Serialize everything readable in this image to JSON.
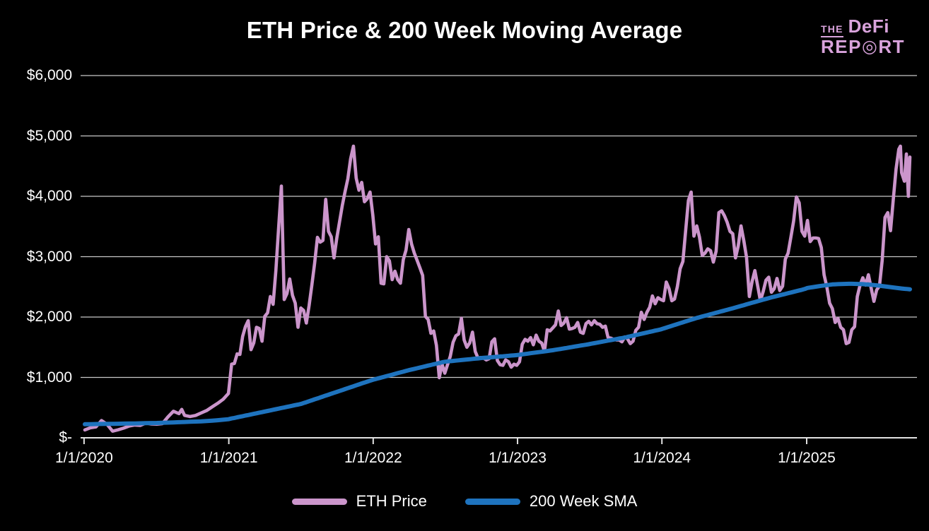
{
  "header": {
    "logo": {
      "the": "THE",
      "defi": "DeFi",
      "rep": "REP",
      "o": "◎",
      "rt": "RT",
      "color": "#d9a3dc"
    }
  },
  "chart_data": {
    "type": "line",
    "title": "ETH Price & 200 Week Moving Average",
    "xlabel": "",
    "ylabel": "",
    "ylim": [
      0,
      6000
    ],
    "x_range": [
      "2020-01-03",
      "2025-09-19"
    ],
    "grid": "horizontal",
    "legend_position": "bottom",
    "y_ticks": [
      {
        "label": "$6,000",
        "value": 6000
      },
      {
        "label": "$5,000",
        "value": 5000
      },
      {
        "label": "$4,000",
        "value": 4000
      },
      {
        "label": "$3,000",
        "value": 3000
      },
      {
        "label": "$2,000",
        "value": 2000
      },
      {
        "label": "$1,000",
        "value": 1000
      },
      {
        "label": "$-",
        "value": 0
      }
    ],
    "x_ticks": [
      {
        "label": "1/1/2020",
        "date": "2020-01-01"
      },
      {
        "label": "1/1/2021",
        "date": "2021-01-01"
      },
      {
        "label": "1/1/2022",
        "date": "2022-01-01"
      },
      {
        "label": "1/1/2023",
        "date": "2023-01-01"
      },
      {
        "label": "1/1/2024",
        "date": "2024-01-01"
      },
      {
        "label": "1/1/2025",
        "date": "2025-01-01"
      }
    ],
    "series": [
      {
        "name": "ETH Price",
        "color": "#cb95cb",
        "column": 1
      },
      {
        "name": "200 Week SMA",
        "color": "#1e73be",
        "column": 2
      }
    ],
    "colors": {
      "grid": "#c8c8c8",
      "axis": "#e2e2e2",
      "text": "#ffffff",
      "background": "#000000"
    },
    "rows_note": "each row = [week_date, eth_price_usd, sma_200_week_usd]",
    "rows": [
      [
        "2020-01-03",
        130,
        225
      ],
      [
        "2020-01-17",
        166,
        226
      ],
      [
        "2020-01-31",
        180,
        228
      ],
      [
        "2020-02-14",
        285,
        229
      ],
      [
        "2020-02-28",
        225,
        231
      ],
      [
        "2020-03-13",
        110,
        232
      ],
      [
        "2020-03-27",
        132,
        233
      ],
      [
        "2020-04-10",
        160,
        235
      ],
      [
        "2020-04-24",
        195,
        236
      ],
      [
        "2020-05-08",
        212,
        238
      ],
      [
        "2020-05-22",
        205,
        240
      ],
      [
        "2020-06-05",
        245,
        242
      ],
      [
        "2020-06-19",
        228,
        244
      ],
      [
        "2020-07-03",
        226,
        246
      ],
      [
        "2020-07-17",
        235,
        249
      ],
      [
        "2020-07-31",
        345,
        252
      ],
      [
        "2020-08-14",
        440,
        255
      ],
      [
        "2020-08-28",
        400,
        258
      ],
      [
        "2020-09-04",
        470,
        260
      ],
      [
        "2020-09-11",
        372,
        262
      ],
      [
        "2020-09-25",
        352,
        265
      ],
      [
        "2020-10-09",
        370,
        269
      ],
      [
        "2020-10-23",
        412,
        273
      ],
      [
        "2020-11-06",
        452,
        278
      ],
      [
        "2020-11-20",
        512,
        284
      ],
      [
        "2020-12-04",
        572,
        291
      ],
      [
        "2020-12-18",
        640,
        299
      ],
      [
        "2020-12-31",
        735,
        308
      ],
      [
        "2021-01-08",
        1220,
        320
      ],
      [
        "2021-01-15",
        1230,
        329
      ],
      [
        "2021-01-22",
        1390,
        339
      ],
      [
        "2021-01-29",
        1380,
        348
      ],
      [
        "2021-02-05",
        1680,
        358
      ],
      [
        "2021-02-12",
        1840,
        368
      ],
      [
        "2021-02-19",
        1940,
        377
      ],
      [
        "2021-02-26",
        1460,
        387
      ],
      [
        "2021-03-05",
        1570,
        397
      ],
      [
        "2021-03-12",
        1830,
        406
      ],
      [
        "2021-03-19",
        1810,
        416
      ],
      [
        "2021-03-26",
        1600,
        425
      ],
      [
        "2021-04-02",
        2010,
        435
      ],
      [
        "2021-04-09",
        2070,
        445
      ],
      [
        "2021-04-16",
        2340,
        454
      ],
      [
        "2021-04-23",
        2210,
        464
      ],
      [
        "2021-04-30",
        2770,
        474
      ],
      [
        "2021-05-07",
        3480,
        483
      ],
      [
        "2021-05-14",
        4170,
        493
      ],
      [
        "2021-05-21",
        2290,
        502
      ],
      [
        "2021-05-28",
        2390,
        512
      ],
      [
        "2021-06-04",
        2630,
        522
      ],
      [
        "2021-06-11",
        2360,
        531
      ],
      [
        "2021-06-18",
        2230,
        541
      ],
      [
        "2021-06-25",
        1830,
        550
      ],
      [
        "2021-07-02",
        2150,
        560
      ],
      [
        "2021-07-09",
        2110,
        575
      ],
      [
        "2021-07-16",
        1900,
        590
      ],
      [
        "2021-07-23",
        2190,
        606
      ],
      [
        "2021-07-30",
        2530,
        621
      ],
      [
        "2021-08-06",
        2890,
        637
      ],
      [
        "2021-08-13",
        3320,
        652
      ],
      [
        "2021-08-20",
        3240,
        668
      ],
      [
        "2021-08-27",
        3270,
        683
      ],
      [
        "2021-09-03",
        3950,
        699
      ],
      [
        "2021-09-10",
        3420,
        714
      ],
      [
        "2021-09-17",
        3330,
        730
      ],
      [
        "2021-09-24",
        2980,
        745
      ],
      [
        "2021-10-01",
        3310,
        760
      ],
      [
        "2021-10-08",
        3580,
        776
      ],
      [
        "2021-10-15",
        3850,
        791
      ],
      [
        "2021-10-22",
        4080,
        807
      ],
      [
        "2021-10-29",
        4290,
        822
      ],
      [
        "2021-11-05",
        4620,
        838
      ],
      [
        "2021-11-12",
        4830,
        853
      ],
      [
        "2021-11-19",
        4300,
        869
      ],
      [
        "2021-11-26",
        4100,
        884
      ],
      [
        "2021-12-03",
        4230,
        900
      ],
      [
        "2021-12-10",
        3910,
        915
      ],
      [
        "2021-12-17",
        3960,
        930
      ],
      [
        "2021-12-24",
        4070,
        945
      ],
      [
        "2021-12-31",
        3690,
        960
      ],
      [
        "2022-01-07",
        3210,
        972
      ],
      [
        "2022-01-14",
        3330,
        985
      ],
      [
        "2022-01-21",
        2560,
        997
      ],
      [
        "2022-01-28",
        2550,
        1009
      ],
      [
        "2022-02-04",
        3000,
        1022
      ],
      [
        "2022-02-11",
        2930,
        1034
      ],
      [
        "2022-02-18",
        2620,
        1046
      ],
      [
        "2022-02-25",
        2760,
        1058
      ],
      [
        "2022-03-04",
        2620,
        1071
      ],
      [
        "2022-03-11",
        2560,
        1083
      ],
      [
        "2022-03-18",
        2950,
        1095
      ],
      [
        "2022-03-25",
        3110,
        1108
      ],
      [
        "2022-04-01",
        3450,
        1120
      ],
      [
        "2022-04-08",
        3210,
        1131
      ],
      [
        "2022-04-15",
        3060,
        1142
      ],
      [
        "2022-04-22",
        2940,
        1152
      ],
      [
        "2022-04-29",
        2820,
        1163
      ],
      [
        "2022-05-06",
        2690,
        1174
      ],
      [
        "2022-05-13",
        2010,
        1185
      ],
      [
        "2022-05-20",
        1960,
        1196
      ],
      [
        "2022-05-27",
        1730,
        1206
      ],
      [
        "2022-06-03",
        1770,
        1217
      ],
      [
        "2022-06-10",
        1530,
        1228
      ],
      [
        "2022-06-17",
        995,
        1239
      ],
      [
        "2022-06-24",
        1220,
        1250
      ],
      [
        "2022-07-01",
        1070,
        1260
      ],
      [
        "2022-07-08",
        1210,
        1265
      ],
      [
        "2022-07-15",
        1350,
        1269
      ],
      [
        "2022-07-22",
        1580,
        1274
      ],
      [
        "2022-07-29",
        1690,
        1278
      ],
      [
        "2022-08-05",
        1720,
        1283
      ],
      [
        "2022-08-12",
        1980,
        1288
      ],
      [
        "2022-08-19",
        1620,
        1292
      ],
      [
        "2022-08-26",
        1500,
        1297
      ],
      [
        "2022-09-02",
        1570,
        1301
      ],
      [
        "2022-09-09",
        1750,
        1306
      ],
      [
        "2022-09-16",
        1430,
        1311
      ],
      [
        "2022-09-23",
        1320,
        1315
      ],
      [
        "2022-09-30",
        1330,
        1320
      ],
      [
        "2022-10-07",
        1320,
        1324
      ],
      [
        "2022-10-14",
        1290,
        1328
      ],
      [
        "2022-10-21",
        1310,
        1331
      ],
      [
        "2022-10-28",
        1590,
        1335
      ],
      [
        "2022-11-04",
        1640,
        1339
      ],
      [
        "2022-11-11",
        1280,
        1343
      ],
      [
        "2022-11-18",
        1210,
        1347
      ],
      [
        "2022-11-25",
        1200,
        1350
      ],
      [
        "2022-12-02",
        1290,
        1354
      ],
      [
        "2022-12-09",
        1260,
        1358
      ],
      [
        "2022-12-16",
        1170,
        1362
      ],
      [
        "2022-12-23",
        1220,
        1366
      ],
      [
        "2022-12-30",
        1200,
        1370
      ],
      [
        "2023-01-06",
        1260,
        1376
      ],
      [
        "2023-01-13",
        1550,
        1382
      ],
      [
        "2023-01-20",
        1630,
        1388
      ],
      [
        "2023-01-27",
        1600,
        1394
      ],
      [
        "2023-02-03",
        1660,
        1401
      ],
      [
        "2023-02-10",
        1540,
        1407
      ],
      [
        "2023-02-17",
        1700,
        1413
      ],
      [
        "2023-02-24",
        1600,
        1419
      ],
      [
        "2023-03-03",
        1570,
        1425
      ],
      [
        "2023-03-10",
        1430,
        1432
      ],
      [
        "2023-03-17",
        1790,
        1438
      ],
      [
        "2023-03-24",
        1770,
        1444
      ],
      [
        "2023-03-31",
        1820,
        1450
      ],
      [
        "2023-04-07",
        1870,
        1458
      ],
      [
        "2023-04-14",
        2100,
        1465
      ],
      [
        "2023-04-21",
        1860,
        1473
      ],
      [
        "2023-04-28",
        1900,
        1481
      ],
      [
        "2023-05-05",
        1990,
        1488
      ],
      [
        "2023-05-12",
        1800,
        1496
      ],
      [
        "2023-05-19",
        1810,
        1504
      ],
      [
        "2023-05-26",
        1830,
        1512
      ],
      [
        "2023-06-02",
        1910,
        1519
      ],
      [
        "2023-06-09",
        1750,
        1527
      ],
      [
        "2023-06-16",
        1730,
        1535
      ],
      [
        "2023-06-23",
        1890,
        1542
      ],
      [
        "2023-06-30",
        1930,
        1550
      ],
      [
        "2023-07-07",
        1870,
        1559
      ],
      [
        "2023-07-14",
        1940,
        1567
      ],
      [
        "2023-07-21",
        1890,
        1576
      ],
      [
        "2023-07-28",
        1880,
        1584
      ],
      [
        "2023-08-04",
        1830,
        1593
      ],
      [
        "2023-08-11",
        1850,
        1601
      ],
      [
        "2023-08-18",
        1660,
        1610
      ],
      [
        "2023-08-25",
        1650,
        1618
      ],
      [
        "2023-09-01",
        1630,
        1627
      ],
      [
        "2023-09-08",
        1620,
        1635
      ],
      [
        "2023-09-15",
        1620,
        1644
      ],
      [
        "2023-09-22",
        1590,
        1652
      ],
      [
        "2023-09-29",
        1670,
        1660
      ],
      [
        "2023-10-06",
        1640,
        1671
      ],
      [
        "2023-10-13",
        1560,
        1681
      ],
      [
        "2023-10-20",
        1600,
        1692
      ],
      [
        "2023-10-27",
        1780,
        1702
      ],
      [
        "2023-11-03",
        1830,
        1712
      ],
      [
        "2023-11-10",
        2080,
        1723
      ],
      [
        "2023-11-17",
        1960,
        1733
      ],
      [
        "2023-11-24",
        2080,
        1744
      ],
      [
        "2023-12-01",
        2160,
        1754
      ],
      [
        "2023-12-08",
        2350,
        1764
      ],
      [
        "2023-12-15",
        2220,
        1775
      ],
      [
        "2023-12-22",
        2320,
        1785
      ],
      [
        "2023-12-29",
        2290,
        1795
      ],
      [
        "2024-01-05",
        2270,
        1810
      ],
      [
        "2024-01-12",
        2580,
        1825
      ],
      [
        "2024-01-19",
        2470,
        1840
      ],
      [
        "2024-01-26",
        2270,
        1854
      ],
      [
        "2024-02-02",
        2300,
        1869
      ],
      [
        "2024-02-09",
        2500,
        1883
      ],
      [
        "2024-02-16",
        2800,
        1898
      ],
      [
        "2024-02-23",
        2920,
        1912
      ],
      [
        "2024-03-01",
        3430,
        1927
      ],
      [
        "2024-03-08",
        3930,
        1941
      ],
      [
        "2024-03-15",
        4070,
        1956
      ],
      [
        "2024-03-22",
        3340,
        1970
      ],
      [
        "2024-03-29",
        3510,
        1985
      ],
      [
        "2024-04-05",
        3320,
        1997
      ],
      [
        "2024-04-12",
        3020,
        2010
      ],
      [
        "2024-04-19",
        3060,
        2022
      ],
      [
        "2024-04-26",
        3130,
        2034
      ],
      [
        "2024-05-03",
        3100,
        2047
      ],
      [
        "2024-05-10",
        2910,
        2059
      ],
      [
        "2024-05-17",
        3090,
        2071
      ],
      [
        "2024-05-24",
        3730,
        2083
      ],
      [
        "2024-05-31",
        3760,
        2096
      ],
      [
        "2024-06-07",
        3680,
        2108
      ],
      [
        "2024-06-14",
        3570,
        2120
      ],
      [
        "2024-06-21",
        3420,
        2133
      ],
      [
        "2024-06-28",
        3380,
        2145
      ],
      [
        "2024-07-05",
        2980,
        2158
      ],
      [
        "2024-07-12",
        3180,
        2171
      ],
      [
        "2024-07-19",
        3510,
        2184
      ],
      [
        "2024-07-26",
        3270,
        2197
      ],
      [
        "2024-08-02",
        2990,
        2210
      ],
      [
        "2024-08-09",
        2340,
        2223
      ],
      [
        "2024-08-16",
        2590,
        2236
      ],
      [
        "2024-08-23",
        2770,
        2249
      ],
      [
        "2024-08-30",
        2520,
        2262
      ],
      [
        "2024-09-06",
        2270,
        2275
      ],
      [
        "2024-09-13",
        2420,
        2288
      ],
      [
        "2024-09-20",
        2610,
        2301
      ],
      [
        "2024-09-27",
        2660,
        2314
      ],
      [
        "2024-10-04",
        2410,
        2326
      ],
      [
        "2024-10-11",
        2470,
        2337
      ],
      [
        "2024-10-18",
        2640,
        2349
      ],
      [
        "2024-10-25",
        2440,
        2360
      ],
      [
        "2024-11-01",
        2510,
        2372
      ],
      [
        "2024-11-08",
        2960,
        2383
      ],
      [
        "2024-11-15",
        3060,
        2395
      ],
      [
        "2024-11-22",
        3320,
        2406
      ],
      [
        "2024-11-29",
        3590,
        2418
      ],
      [
        "2024-12-06",
        3990,
        2429
      ],
      [
        "2024-12-13",
        3890,
        2441
      ],
      [
        "2024-12-20",
        3420,
        2452
      ],
      [
        "2024-12-27",
        3340,
        2464
      ],
      [
        "2025-01-03",
        3600,
        2482
      ],
      [
        "2025-01-10",
        3250,
        2489
      ],
      [
        "2025-01-17",
        3310,
        2496
      ],
      [
        "2025-01-24",
        3310,
        2503
      ],
      [
        "2025-01-31",
        3300,
        2510
      ],
      [
        "2025-02-07",
        3150,
        2517
      ],
      [
        "2025-02-14",
        2700,
        2523
      ],
      [
        "2025-02-21",
        2500,
        2529
      ],
      [
        "2025-02-28",
        2230,
        2535
      ],
      [
        "2025-03-07",
        2140,
        2540
      ],
      [
        "2025-03-14",
        1910,
        2543
      ],
      [
        "2025-03-21",
        1980,
        2545
      ],
      [
        "2025-03-28",
        1830,
        2547
      ],
      [
        "2025-04-04",
        1790,
        2549
      ],
      [
        "2025-04-11",
        1560,
        2550
      ],
      [
        "2025-04-18",
        1580,
        2551
      ],
      [
        "2025-04-25",
        1790,
        2551
      ],
      [
        "2025-05-02",
        1840,
        2550
      ],
      [
        "2025-05-09",
        2340,
        2549
      ],
      [
        "2025-05-16",
        2530,
        2547
      ],
      [
        "2025-05-23",
        2650,
        2545
      ],
      [
        "2025-05-30",
        2530,
        2542
      ],
      [
        "2025-06-06",
        2700,
        2538
      ],
      [
        "2025-06-13",
        2480,
        2534
      ],
      [
        "2025-06-20",
        2260,
        2530
      ],
      [
        "2025-06-27",
        2450,
        2525
      ],
      [
        "2025-07-04",
        2510,
        2520
      ],
      [
        "2025-07-11",
        2940,
        2514
      ],
      [
        "2025-07-18",
        3650,
        2508
      ],
      [
        "2025-07-25",
        3730,
        2502
      ],
      [
        "2025-08-01",
        3430,
        2496
      ],
      [
        "2025-08-08",
        3950,
        2490
      ],
      [
        "2025-08-15",
        4450,
        2484
      ],
      [
        "2025-08-22",
        4780,
        2478
      ],
      [
        "2025-08-26",
        4830,
        2475
      ],
      [
        "2025-08-29",
        4390,
        2472
      ],
      [
        "2025-09-05",
        4250,
        2468
      ],
      [
        "2025-09-10",
        4700,
        2465
      ],
      [
        "2025-09-15",
        4000,
        2462
      ],
      [
        "2025-09-19",
        4650,
        2460
      ]
    ]
  }
}
